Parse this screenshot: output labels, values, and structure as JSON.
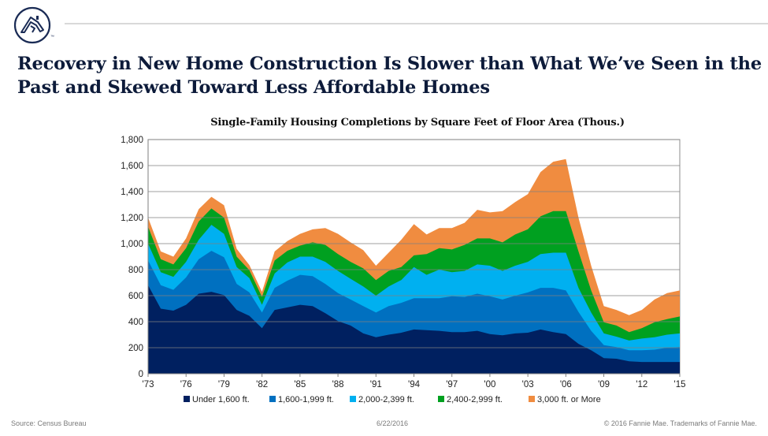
{
  "header": {
    "logo": "fannie-mae-house-logo",
    "trademark": "™",
    "title": "Recovery in New Home Construction Is Slower than What We’ve Seen in the Past and Skewed Toward Less Affordable Homes"
  },
  "footer": {
    "source": "Source: Census Bureau",
    "date": "6/22/2016",
    "copyright": "© 2016 Fannie Mae.  Trademarks of Fannie Mae."
  },
  "chart_data": {
    "type": "area",
    "stacked": true,
    "title": "Single-Family Housing Completions by Square Feet of Floor Area (Thous.)",
    "xlabel": "",
    "ylabel": "",
    "ylim": [
      0,
      1800
    ],
    "yticks": [
      0,
      200,
      400,
      600,
      800,
      1000,
      1200,
      1400,
      1600,
      1800
    ],
    "ytick_labels": [
      "0",
      "200",
      "400",
      "600",
      "800",
      "1,000",
      "1,200",
      "1,400",
      "1,600",
      "1,800"
    ],
    "x": [
      1973,
      1974,
      1975,
      1976,
      1977,
      1978,
      1979,
      1980,
      1981,
      1982,
      1983,
      1984,
      1985,
      1986,
      1987,
      1988,
      1989,
      1990,
      1991,
      1992,
      1993,
      1994,
      1995,
      1996,
      1997,
      1998,
      1999,
      2000,
      2001,
      2002,
      2003,
      2004,
      2005,
      2006,
      2007,
      2008,
      2009,
      2010,
      2011,
      2012,
      2013,
      2014,
      2015
    ],
    "xticks": [
      1973,
      1976,
      1979,
      1982,
      1985,
      1988,
      1991,
      1994,
      1997,
      2000,
      2003,
      2006,
      2009,
      2012,
      2015
    ],
    "xtick_labels": [
      "'73",
      "'76",
      "'79",
      "'82",
      "'85",
      "'88",
      "'91",
      "'94",
      "'97",
      "'00",
      "'03",
      "'06",
      "'09",
      "'12",
      "'15"
    ],
    "grid": true,
    "legend_position": "bottom",
    "series": [
      {
        "name": "Under 1,600 ft.",
        "color": "#002060",
        "values": [
          680,
          500,
          485,
          530,
          615,
          630,
          605,
          490,
          445,
          350,
          490,
          510,
          530,
          520,
          465,
          405,
          370,
          310,
          280,
          300,
          315,
          340,
          335,
          330,
          320,
          320,
          330,
          305,
          295,
          310,
          315,
          340,
          320,
          305,
          230,
          180,
          120,
          115,
          95,
          90,
          90,
          90,
          90
        ]
      },
      {
        "name": "1,600-1,999 ft.",
        "color": "#0070c0",
        "values": [
          870,
          680,
          645,
          740,
          880,
          945,
          895,
          690,
          625,
          470,
          660,
          715,
          760,
          750,
          690,
          620,
          570,
          520,
          470,
          520,
          545,
          580,
          580,
          580,
          595,
          590,
          615,
          595,
          570,
          600,
          625,
          660,
          660,
          640,
          475,
          330,
          220,
          205,
          180,
          180,
          185,
          200,
          205
        ]
      },
      {
        "name": "2,000-2,399 ft.",
        "color": "#00b0f0",
        "values": [
          1000,
          780,
          745,
          860,
          1030,
          1145,
          1075,
          820,
          735,
          530,
          770,
          855,
          900,
          900,
          860,
          790,
          730,
          670,
          600,
          670,
          720,
          820,
          760,
          800,
          780,
          790,
          840,
          830,
          790,
          830,
          860,
          920,
          930,
          930,
          660,
          470,
          310,
          285,
          255,
          270,
          280,
          300,
          310
        ]
      },
      {
        "name": "2,400-2,999 ft.",
        "color": "#00a020",
        "values": [
          1130,
          880,
          840,
          965,
          1170,
          1270,
          1200,
          900,
          795,
          590,
          870,
          945,
          985,
          1010,
          990,
          920,
          860,
          810,
          720,
          790,
          820,
          910,
          920,
          965,
          955,
          990,
          1040,
          1040,
          1010,
          1070,
          1110,
          1210,
          1250,
          1250,
          940,
          640,
          395,
          370,
          320,
          350,
          395,
          420,
          440
        ]
      },
      {
        "name": "3,000 ft. or More",
        "color": "#f08c40",
        "values": [
          1200,
          940,
          900,
          1040,
          1265,
          1360,
          1295,
          960,
          835,
          630,
          940,
          1020,
          1075,
          1110,
          1120,
          1075,
          1010,
          950,
          830,
          930,
          1030,
          1150,
          1070,
          1120,
          1120,
          1160,
          1260,
          1240,
          1250,
          1320,
          1380,
          1550,
          1630,
          1650,
          1200,
          830,
          520,
          490,
          450,
          490,
          570,
          620,
          640
        ]
      }
    ]
  }
}
